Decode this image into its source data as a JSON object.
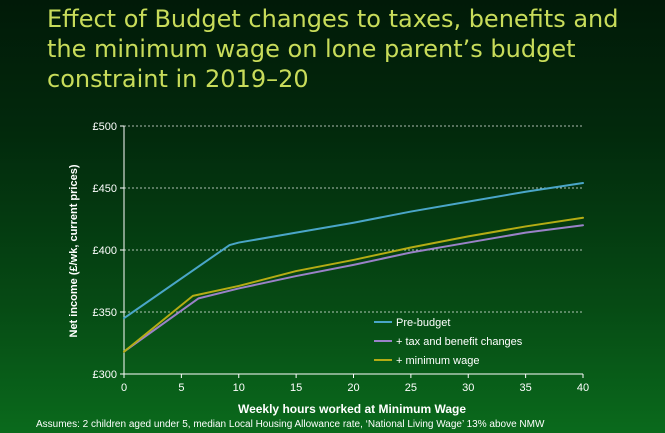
{
  "title": "Effect of Budget changes to taxes, benefits and the minimum wage on lone parent’s budget constraint in 2019–20",
  "footnote": "Assumes: 2 children aged under 5, median Local Housing Allowance rate, ‘National Living Wage’ 13% above NMW",
  "chart_data": {
    "type": "line",
    "xlabel": "Weekly hours worked at Minimum Wage",
    "ylabel": "Net income (£/wk, current prices)",
    "xlim": [
      0,
      40
    ],
    "ylim": [
      300,
      500
    ],
    "xticks": [
      0,
      5,
      10,
      15,
      20,
      25,
      30,
      35,
      40
    ],
    "yticks": [
      300,
      350,
      400,
      450,
      500
    ],
    "ytick_labels": [
      "£300",
      "£350",
      "£400",
      "£450",
      "£500"
    ],
    "grid": "horizontal dashed",
    "legend_position": "bottom-right",
    "series": [
      {
        "name": "Pre-budget",
        "color": "#4aa6c8",
        "x": [
          0,
          9.2,
          10,
          15,
          20,
          25,
          30,
          35,
          40
        ],
        "y": [
          345,
          404,
          406,
          414,
          422,
          431,
          439,
          447,
          454
        ]
      },
      {
        "name": "+ tax and benefit changes",
        "color": "#9a82c8",
        "x": [
          0,
          6.5,
          10,
          15,
          20,
          25,
          30,
          35,
          40
        ],
        "y": [
          318,
          361,
          369,
          379,
          388,
          398,
          406,
          414,
          420
        ]
      },
      {
        "name": "+ minimum wage",
        "color": "#b4ac14",
        "x": [
          0,
          6,
          10,
          15,
          20,
          25,
          30,
          35,
          40
        ],
        "y": [
          318,
          363,
          371,
          383,
          392,
          402,
          411,
          419,
          426
        ]
      }
    ]
  }
}
